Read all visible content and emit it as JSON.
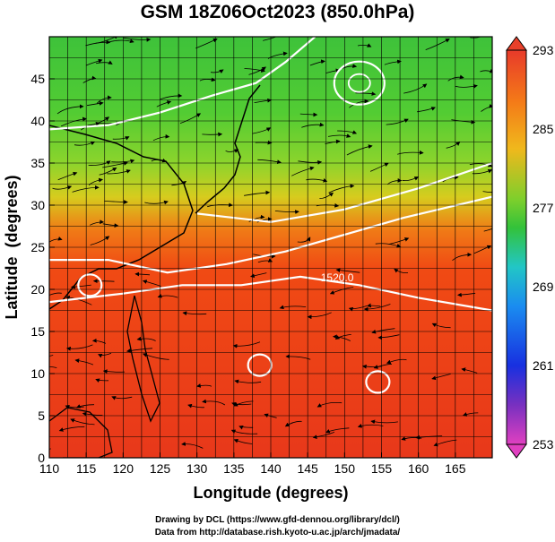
{
  "chart_data": {
    "type": "heatmap",
    "title": "GSM 18Z06Oct2023 (850.0hPa)",
    "xlabel": "Longitude (degrees)",
    "ylabel": "Latitude  (degrees)",
    "xlim": [
      110,
      170
    ],
    "ylim": [
      0,
      50
    ],
    "x_ticks": [
      "110",
      "115",
      "120",
      "125",
      "130",
      "135",
      "140",
      "145",
      "150",
      "155",
      "160",
      "165"
    ],
    "y_ticks": [
      "0",
      "5",
      "10",
      "15",
      "20",
      "25",
      "30",
      "35",
      "40",
      "45"
    ],
    "grid": true,
    "colorbar": {
      "position": "right",
      "min": 253,
      "max": 293,
      "tick_labels": [
        "293",
        "285",
        "277",
        "269",
        "261",
        "253"
      ]
    },
    "temperature_zones": [
      {
        "lat_min": 40,
        "lat_max": 50,
        "value": 278
      },
      {
        "lat_min": 30,
        "lat_max": 40,
        "value": 282
      },
      {
        "lat_min": 0,
        "lat_max": 30,
        "value": 289
      }
    ],
    "contour_labels": [
      {
        "text": "1520.0",
        "lon": 149,
        "lat": 21.5
      }
    ],
    "pressure_systems": [
      {
        "lon": 152,
        "lat": 44.5
      },
      {
        "lon": 115.5,
        "lat": 20.5
      },
      {
        "lon": 138.5,
        "lat": 11
      },
      {
        "lon": 154.5,
        "lat": 9
      }
    ]
  },
  "credits": {
    "line1": "Drawing by DCL (https://www.gfd-dennou.org/library/dcl/)",
    "line2": "Data from http://database.rish.kyoto-u.ac.jp/arch/jmadata/"
  }
}
